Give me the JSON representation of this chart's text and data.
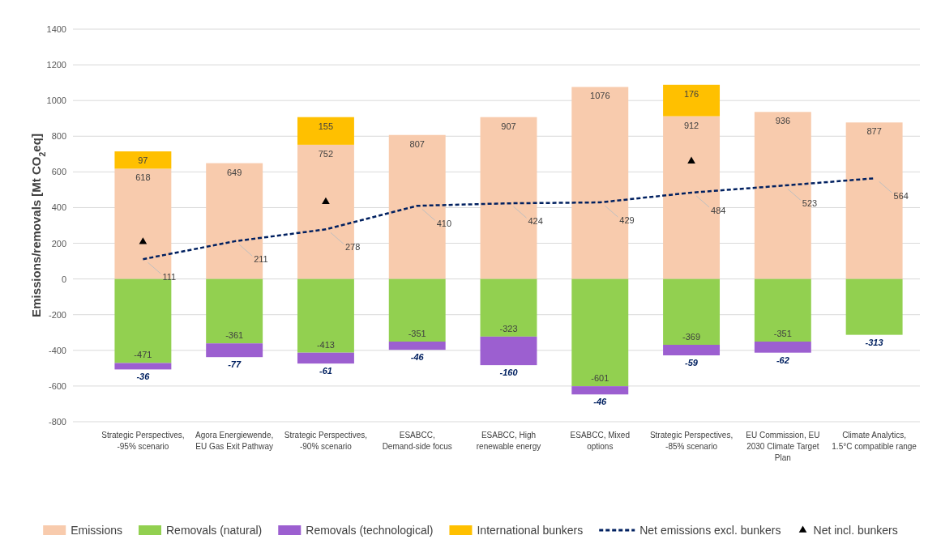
{
  "chart_data": {
    "type": "bar",
    "stacked": true,
    "ylabel": "Emissions/removals [Mt CO$_{2}$eq]",
    "categories": [
      "Strategic Perspectives, -95% scenario",
      "Agora Energiewende, EU Gas Exit Pathway",
      "Strategic Perspectives, -90% scenario",
      "ESABCC, Demand-side focus",
      "ESABCC, High renewable energy",
      "ESABCC, Mixed options",
      "Strategic Perspectives, -85% scenario",
      "EU Commission, EU 2030 Climate Target Plan",
      "Climate Analytics, 1.5°C compatible range"
    ],
    "ylim": [
      -800,
      1400
    ],
    "yticks": [
      -800,
      -600,
      -400,
      -200,
      0,
      200,
      400,
      600,
      800,
      1000,
      1200,
      1400
    ],
    "grid": "y",
    "legend": "bottom",
    "series": [
      {
        "name": "Emissions",
        "color": "#f8cbad",
        "values": [
          618,
          649,
          752,
          807,
          907,
          1076,
          912,
          936,
          877
        ],
        "value_labels": [
          "618",
          "649",
          "752",
          "807",
          "907",
          "1076",
          "912",
          "936",
          "877"
        ]
      },
      {
        "name": "Removals (natural)",
        "color": "#92d050",
        "values": [
          -471,
          -361,
          -413,
          -351,
          -323,
          -601,
          -369,
          -351,
          -313
        ],
        "value_labels": [
          "-471",
          "-361",
          "-413",
          "-351",
          "-323",
          "-601",
          "-369",
          "-351",
          "-313"
        ]
      },
      {
        "name": "Removals (technological)",
        "color": "#9c5fd0",
        "values": [
          -36,
          -77,
          -61,
          -46,
          -160,
          -46,
          -59,
          -62,
          null
        ],
        "value_labels": [
          "-36",
          "-77",
          "-61",
          "-46",
          "-160",
          "-46",
          "-59",
          "-62",
          null
        ]
      },
      {
        "name": "International bunkers",
        "color": "#ffc000",
        "values": [
          97,
          null,
          155,
          null,
          null,
          null,
          176,
          null,
          null
        ],
        "value_labels": [
          "97",
          null,
          "155",
          null,
          null,
          null,
          "176",
          null,
          null
        ]
      },
      {
        "name": "Net emissions excl. bunkers",
        "type": "line",
        "line_style": "dashed",
        "marker": "none",
        "color": "#002060",
        "values": [
          111,
          211,
          278,
          410,
          424,
          429,
          484,
          523,
          564
        ],
        "value_labels": [
          "111",
          "211",
          "278",
          "410",
          "424",
          "429",
          "484",
          "523",
          "564"
        ]
      },
      {
        "name": "Net incl. bunkers",
        "type": "scatter",
        "marker": "triangle",
        "color": "#000000",
        "values": [
          208,
          null,
          433,
          null,
          null,
          null,
          660,
          null,
          null
        ]
      }
    ]
  }
}
